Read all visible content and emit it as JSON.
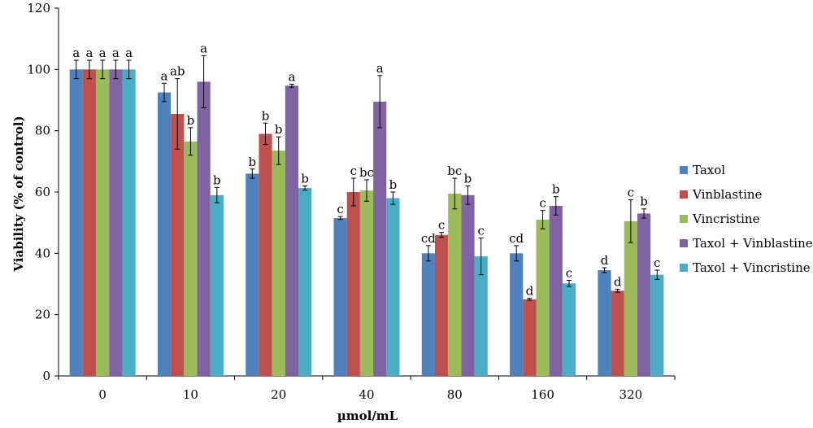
{
  "chart_data": {
    "type": "bar",
    "categories": [
      "0",
      "10",
      "20",
      "40",
      "80",
      "160",
      "320"
    ],
    "xlabel": "µmol/mL",
    "ylabel": "Viability (% of control)",
    "ylim": [
      0,
      120
    ],
    "yticks": [
      0,
      20,
      40,
      60,
      80,
      100,
      120
    ],
    "grid": false,
    "legend_position": "right",
    "series": [
      {
        "name": "Taxol",
        "color": "#4f81bd",
        "values": [
          100,
          92.5,
          66,
          51.5,
          40,
          40,
          34.5
        ],
        "errors": [
          3,
          3,
          1.5,
          0.5,
          2.5,
          2.5,
          0.8
        ],
        "labels": [
          "a",
          "a",
          "b",
          "c",
          "cd",
          "cd",
          "d"
        ]
      },
      {
        "name": "Vinblastine",
        "color": "#c0504d",
        "values": [
          100,
          85.5,
          79,
          60,
          46,
          25,
          27.8
        ],
        "errors": [
          3,
          11.5,
          3.5,
          4.5,
          0.8,
          0.3,
          0.5
        ],
        "labels": [
          "a",
          "ab",
          "b",
          "c",
          "c",
          "d",
          "d"
        ]
      },
      {
        "name": "Vincristine",
        "color": "#9bbb59",
        "values": [
          100,
          76.5,
          73.5,
          60.5,
          59.5,
          51,
          50.5
        ],
        "errors": [
          3,
          4.5,
          4.5,
          3.5,
          5,
          3,
          7
        ],
        "labels": [
          "a",
          "b",
          "b",
          "bc",
          "bc",
          "c",
          "c"
        ]
      },
      {
        "name": "Taxol + Vinblastine",
        "color": "#8064a2",
        "values": [
          100,
          96,
          94.7,
          89.5,
          59,
          55.5,
          53
        ],
        "errors": [
          3,
          8.5,
          0.5,
          8.5,
          3,
          3,
          1.5
        ],
        "labels": [
          "a",
          "a",
          "a",
          "a",
          "b",
          "b",
          "b"
        ]
      },
      {
        "name": "Taxol + Vincristine",
        "color": "#4bacc6",
        "values": [
          100,
          59,
          61.3,
          58,
          39,
          30.2,
          33
        ],
        "errors": [
          3,
          2.5,
          0.7,
          2,
          6,
          1,
          1.5
        ],
        "labels": [
          "a",
          "b",
          "b",
          "b",
          "c",
          "c",
          "c"
        ]
      }
    ]
  }
}
